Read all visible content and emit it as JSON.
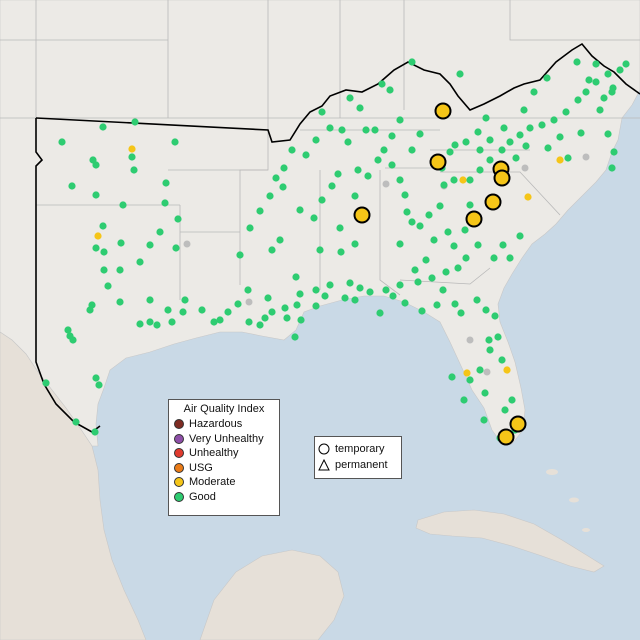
{
  "map": {
    "colors": {
      "water": "#c9d9e6",
      "land": "#eceae6",
      "land_south": "#e6e0d8",
      "state_border": "#b8b8b8",
      "region_outline": "#000000",
      "good": "#2ecc71",
      "moderate": "#f5c518",
      "no_data": "#bdbdbd"
    }
  },
  "aqi_legend": {
    "title": "Air Quality Index",
    "items": [
      {
        "label": "Hazardous",
        "color": "#7e2b22"
      },
      {
        "label": "Very Unhealthy",
        "color": "#8e4fa8"
      },
      {
        "label": "Unhealthy",
        "color": "#e03b2e"
      },
      {
        "label": "USG",
        "color": "#ea7b17"
      },
      {
        "label": "Moderate",
        "color": "#f5c518"
      },
      {
        "label": "Good",
        "color": "#2ecc71"
      }
    ]
  },
  "shape_legend": {
    "items": [
      {
        "label": "temporary",
        "icon": "circle-icon"
      },
      {
        "label": "permanent",
        "icon": "triangle-icon"
      }
    ]
  }
}
